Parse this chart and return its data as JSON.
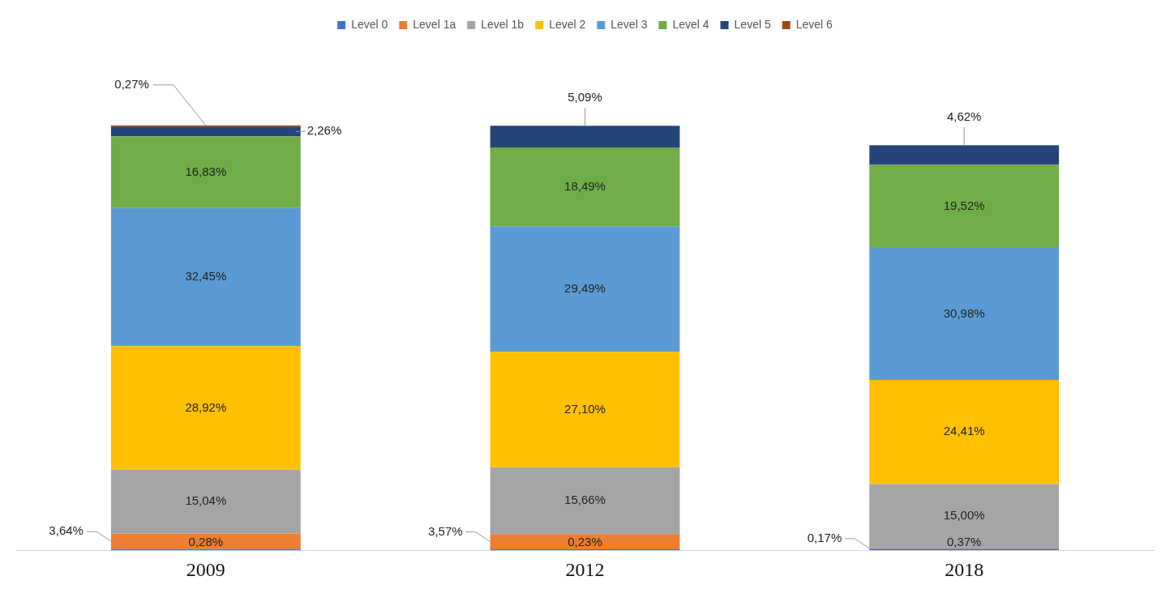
{
  "chart_data": {
    "type": "bar",
    "stacked": true,
    "legend": "top",
    "categories": [
      "2009",
      "2012",
      "2018"
    ],
    "series": [
      {
        "name": "Level 0",
        "color": "#4472c4",
        "values": [
          0.28,
          0.23,
          0.37
        ],
        "value_labels": [
          "0,28%",
          "0,23%",
          "0,37%"
        ]
      },
      {
        "name": "Level 1a",
        "color": "#ed7d31",
        "values": [
          3.64,
          3.57,
          0.17
        ],
        "value_labels": [
          "3,64%",
          "3,57%",
          "0,17%"
        ]
      },
      {
        "name": "Level 1b",
        "color": "#a5a5a5",
        "values": [
          15.04,
          15.66,
          15.0
        ],
        "value_labels": [
          "15,04%",
          "15,66%",
          "15,00%"
        ]
      },
      {
        "name": "Level 2",
        "color": "#ffc000",
        "values": [
          28.92,
          27.1,
          24.41
        ],
        "value_labels": [
          "28,92%",
          "27,10%",
          "24,41%"
        ]
      },
      {
        "name": "Level 3",
        "color": "#5b9bd5",
        "values": [
          32.45,
          29.49,
          30.98
        ],
        "value_labels": [
          "32,45%",
          "29,49%",
          "30,98%"
        ]
      },
      {
        "name": "Level 4",
        "color": "#70ad47",
        "values": [
          16.83,
          18.49,
          19.52
        ],
        "value_labels": [
          "16,83%",
          "18,49%",
          "19,52%"
        ]
      },
      {
        "name": "Level 5",
        "color": "#264478",
        "values": [
          2.26,
          5.09,
          4.62
        ],
        "value_labels": [
          "2,26%",
          "5,09%",
          "4,62%"
        ]
      },
      {
        "name": "Level 6",
        "color": "#9e480e",
        "values": [
          0.27,
          null,
          null
        ],
        "value_labels": [
          "0,27%",
          null,
          null
        ]
      }
    ]
  }
}
